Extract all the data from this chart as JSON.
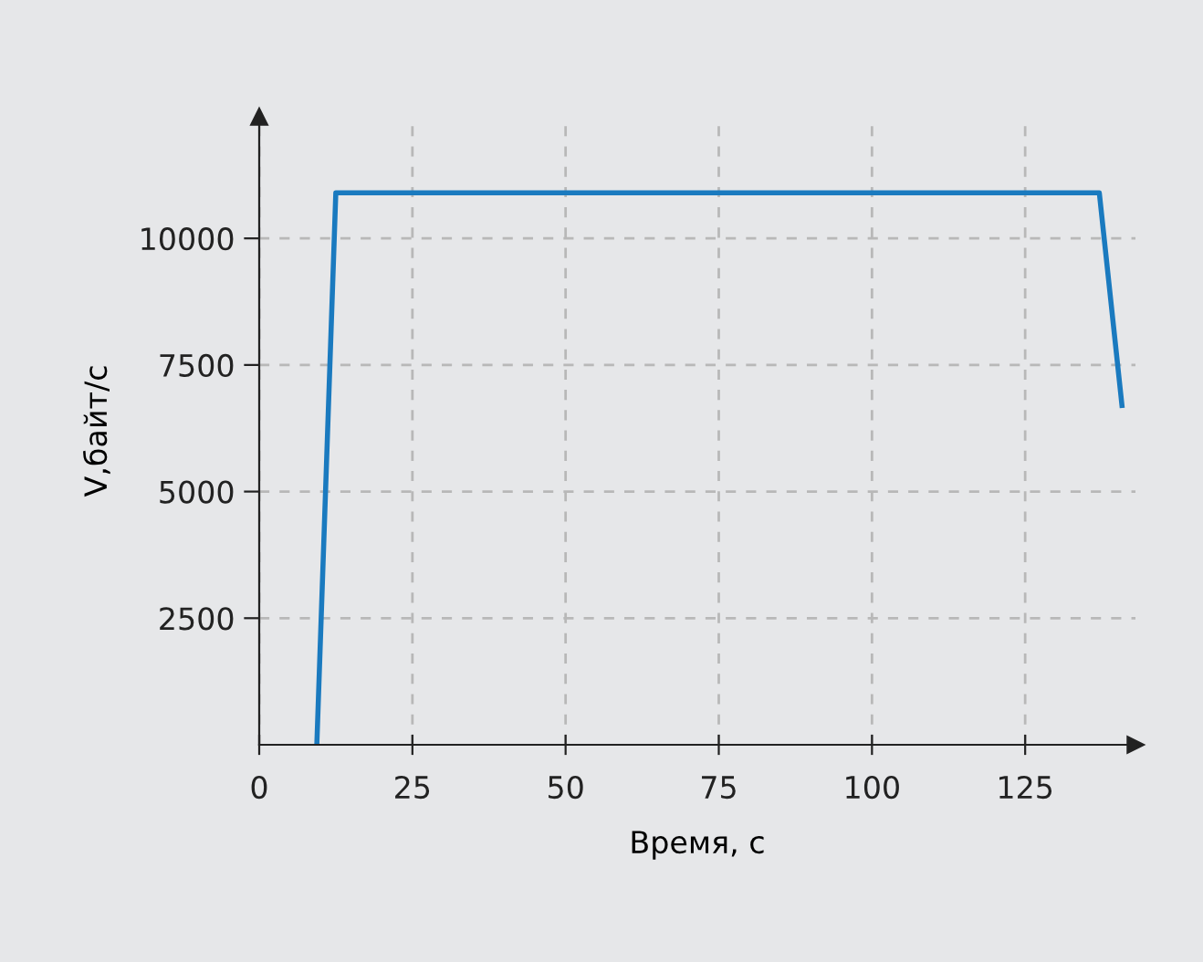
{
  "chart_data": {
    "type": "line",
    "xlabel": "Время, с",
    "ylabel": "V,байт/с",
    "x": [
      9.4,
      12.5,
      137.1,
      140.8
    ],
    "series": [
      {
        "color": "#1a7abf",
        "values": [
          0,
          10900,
          10900,
          6700
        ]
      }
    ],
    "xlim": [
      0,
      143
    ],
    "ylim": [
      0,
      12400
    ],
    "xticks": [
      0,
      25,
      50,
      75,
      100,
      125
    ],
    "yticks": [
      2500,
      5000,
      7500,
      10000
    ],
    "grid": true,
    "line_style": "solid",
    "marker": "none"
  }
}
